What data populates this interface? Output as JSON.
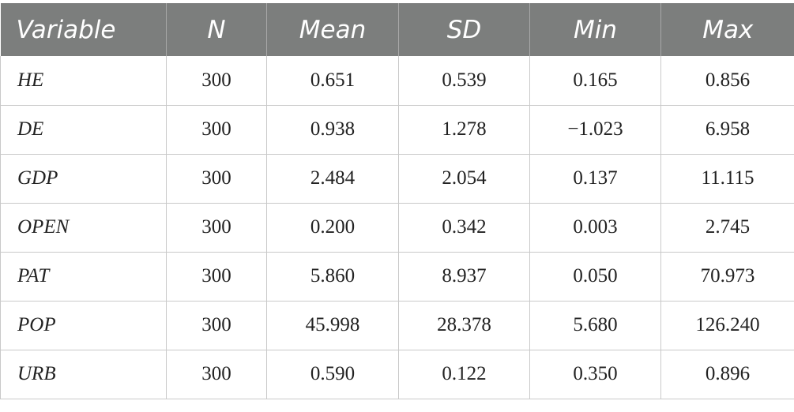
{
  "table": {
    "headers": [
      "Variable",
      "N",
      "Mean",
      "SD",
      "Min",
      "Max"
    ],
    "rows": [
      [
        "HE",
        "300",
        "0.651",
        "0.539",
        "0.165",
        "0.856"
      ],
      [
        "DE",
        "300",
        "0.938",
        "1.278",
        "−1.023",
        "6.958"
      ],
      [
        "GDP",
        "300",
        "2.484",
        "2.054",
        "0.137",
        "11.115"
      ],
      [
        "OPEN",
        "300",
        "0.200",
        "0.342",
        "0.003",
        "2.745"
      ],
      [
        "PAT",
        "300",
        "5.860",
        "8.937",
        "0.050",
        "70.973"
      ],
      [
        "POP",
        "300",
        "45.998",
        "28.378",
        "5.680",
        "126.240"
      ],
      [
        "URB",
        "300",
        "0.590",
        "0.122",
        "0.350",
        "0.896"
      ]
    ]
  }
}
